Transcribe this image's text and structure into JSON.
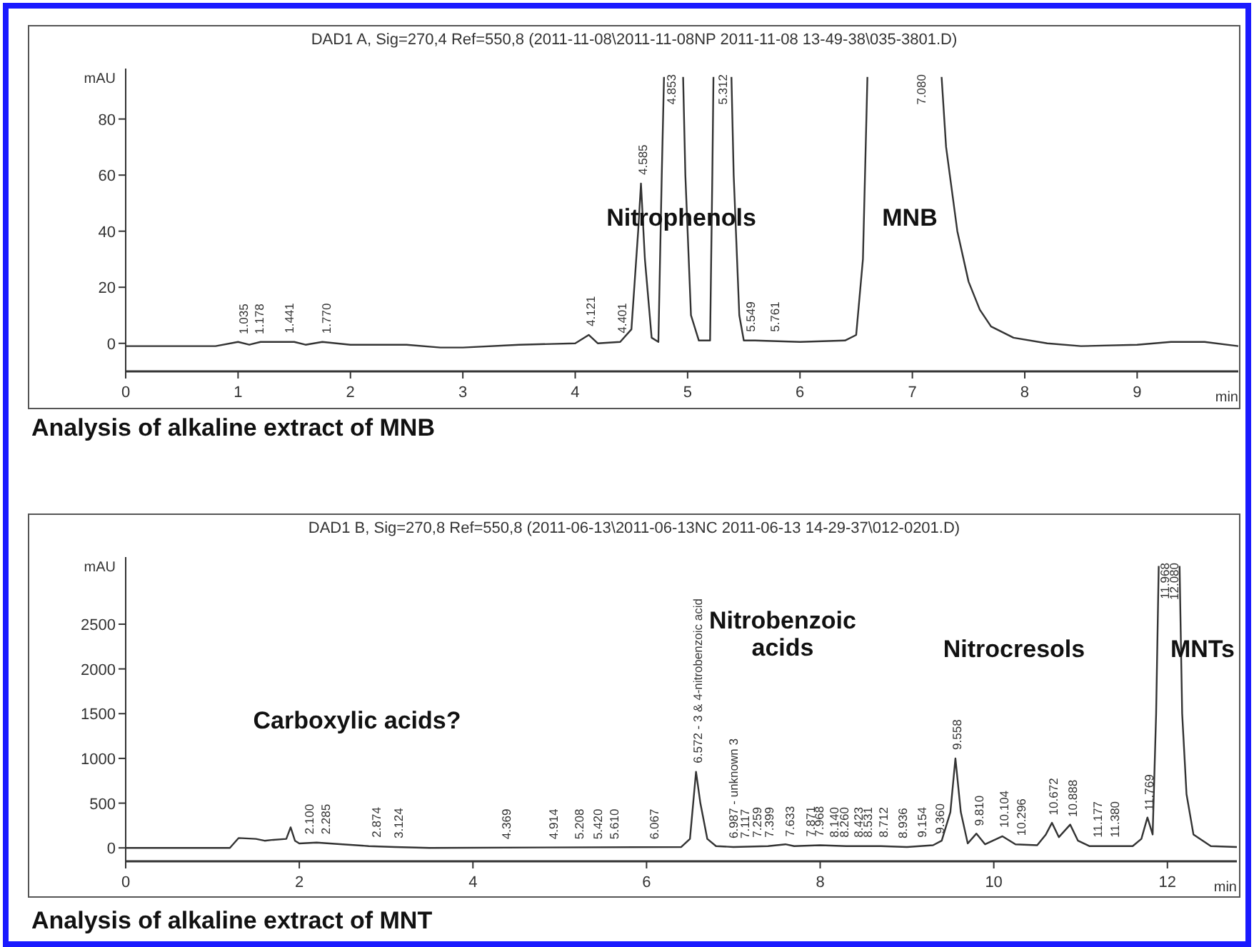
{
  "chart_data": [
    {
      "type": "line",
      "title": "DAD1 A, Sig=270,4 Ref=550,8 (2011-11-08\\2011-11-08NP 2011-11-08 13-49-38\\035-3801.D)",
      "xlabel": "min",
      "ylabel": "mAU",
      "xlim": [
        0,
        9.9
      ],
      "ylim": [
        -10,
        98
      ],
      "xticks": [
        0,
        1,
        2,
        3,
        4,
        5,
        6,
        7,
        8,
        9
      ],
      "yticks": [
        0,
        20,
        40,
        60,
        80
      ],
      "series": [
        {
          "color": "#333333",
          "x": [
            0,
            0.8,
            1.0,
            1.1,
            1.2,
            1.5,
            1.6,
            1.75,
            2.0,
            2.5,
            2.8,
            3.0,
            3.5,
            4.0,
            4.12,
            4.2,
            4.4,
            4.5,
            4.56,
            4.585,
            4.62,
            4.68,
            4.74,
            4.77,
            4.79,
            4.87,
            4.96,
            4.98,
            5.03,
            5.1,
            5.2,
            5.22,
            5.23,
            5.31,
            5.39,
            5.41,
            5.46,
            5.5,
            5.6,
            6.0,
            6.4,
            6.5,
            6.56,
            6.6,
            6.9,
            7.26,
            7.3,
            7.4,
            7.5,
            7.6,
            7.7,
            7.9,
            8.2,
            8.5,
            9.0,
            9.3,
            9.6,
            9.9
          ],
          "values": [
            -1,
            -1,
            0.5,
            -0.5,
            0.5,
            0.5,
            -0.5,
            0.5,
            -0.5,
            -0.5,
            -1.5,
            -1.5,
            -0.5,
            0,
            3,
            0,
            0.5,
            5,
            40,
            57,
            30,
            2,
            0.5,
            60,
            95,
            null,
            95,
            60,
            10,
            1,
            1,
            60,
            95,
            null,
            95,
            60,
            10,
            1,
            1,
            0.5,
            1,
            3,
            30,
            95,
            null,
            95,
            70,
            40,
            22,
            12,
            6,
            2,
            0,
            -1,
            -0.5,
            0.5,
            0.5,
            -1
          ]
        }
      ],
      "annotations": [
        {
          "text": "1.035",
          "x": 1.035,
          "y": 0.2
        },
        {
          "text": "1.178",
          "x": 1.178,
          "y": 0.2
        },
        {
          "text": "1.441",
          "x": 1.441,
          "y": 0.5
        },
        {
          "text": "1.770",
          "x": 1.77,
          "y": 0.4
        },
        {
          "text": "4.121",
          "x": 4.121,
          "y": 3
        },
        {
          "text": "4.401",
          "x": 4.401,
          "y": 0.5
        },
        {
          "text": "4.585",
          "x": 4.585,
          "y": 57
        },
        {
          "text": "4.853",
          "x": 4.853,
          "y": 95
        },
        "5.312",
        {
          "text": "5.549",
          "x": 5.549,
          "y": 1
        },
        {
          "text": "5.761",
          "x": 5.761,
          "y": 1
        },
        "7.080",
        "Nitrophenols",
        "MNB",
        "Analysis of alkaline extract of MNB"
      ]
    },
    {
      "type": "line",
      "title": "DAD1 B, Sig=270,8 Ref=550,8 (2011-06-13\\2011-06-13NC 2011-06-13 14-29-37\\012-0201.D)",
      "xlabel": "min",
      "ylabel": "mAU",
      "xlim": [
        0,
        12.8
      ],
      "ylim": [
        -150,
        3250
      ],
      "xticks": [
        0,
        2,
        4,
        6,
        8,
        10,
        12
      ],
      "yticks": [
        0,
        500,
        1000,
        1500,
        2000,
        2500
      ],
      "series": [
        {
          "color": "#333333",
          "x": [
            0,
            1.2,
            1.3,
            1.5,
            1.6,
            1.7,
            1.85,
            1.9,
            1.95,
            2.0,
            2.2,
            2.5,
            2.8,
            3.1,
            3.5,
            6.4,
            6.5,
            6.57,
            6.62,
            6.7,
            6.8,
            7.0,
            7.4,
            7.6,
            7.7,
            8.0,
            8.3,
            8.7,
            9.0,
            9.3,
            9.4,
            9.5,
            9.558,
            9.62,
            9.7,
            9.8,
            9.9,
            10.1,
            10.25,
            10.5,
            10.6,
            10.67,
            10.75,
            10.88,
            10.97,
            11.1,
            11.6,
            11.7,
            11.77,
            11.83,
            11.87,
            11.9,
            12.02,
            12.14,
            12.17,
            12.22,
            12.3,
            12.5,
            12.8
          ],
          "values": [
            0,
            0,
            110,
            100,
            80,
            90,
            100,
            230,
            80,
            50,
            60,
            40,
            20,
            10,
            0,
            10,
            100,
            850,
            500,
            100,
            20,
            10,
            20,
            40,
            20,
            30,
            20,
            20,
            10,
            30,
            80,
            400,
            1000,
            400,
            50,
            160,
            40,
            130,
            40,
            30,
            150,
            280,
            120,
            260,
            80,
            20,
            20,
            100,
            340,
            150,
            1500,
            3150,
            null,
            3150,
            1500,
            600,
            150,
            20,
            10
          ]
        }
      ],
      "annotations": [
        {
          "text": "2.100",
          "x": 2.1,
          "y": 55
        },
        {
          "text": "2.285",
          "x": 2.285,
          "y": 55
        },
        {
          "text": "2.874",
          "x": 2.874,
          "y": 20
        },
        {
          "text": "3.124",
          "x": 3.124,
          "y": 10
        },
        {
          "text": "4.369",
          "x": 4.369,
          "y": 0
        },
        {
          "text": "4.914",
          "x": 4.914,
          "y": 0
        },
        {
          "text": "5.208",
          "x": 5.208,
          "y": 0
        },
        {
          "text": "5.420",
          "x": 5.42,
          "y": 0
        },
        {
          "text": "5.610",
          "x": 5.61,
          "y": 0
        },
        {
          "text": "6.067",
          "x": 6.067,
          "y": 0
        },
        {
          "text": "6.572 - 3 & 4-nitrobenzoic acid",
          "x": 6.572,
          "y": 850
        },
        {
          "text": "6.987 - unknown 3",
          "x": 6.987,
          "y": 10
        },
        {
          "text": "7.117",
          "x": 7.117,
          "y": 10
        },
        {
          "text": "7.259",
          "x": 7.259,
          "y": 20
        },
        {
          "text": "7.399",
          "x": 7.399,
          "y": 20
        },
        {
          "text": "7.633",
          "x": 7.633,
          "y": 30
        },
        {
          "text": "7.871",
          "x": 7.871,
          "y": 30
        },
        {
          "text": "7.968",
          "x": 7.968,
          "y": 30
        },
        {
          "text": "8.140",
          "x": 8.14,
          "y": 20
        },
        {
          "text": "8.260",
          "x": 8.26,
          "y": 20
        },
        {
          "text": "8.423",
          "x": 8.423,
          "y": 20
        },
        {
          "text": "8.531",
          "x": 8.531,
          "y": 20
        },
        {
          "text": "8.712",
          "x": 8.712,
          "y": 20
        },
        {
          "text": "8.936",
          "x": 8.936,
          "y": 10
        },
        {
          "text": "9.154",
          "x": 9.154,
          "y": 20
        },
        {
          "text": "9.360",
          "x": 9.36,
          "y": 60
        },
        {
          "text": "9.558",
          "x": 9.558,
          "y": 1000
        },
        {
          "text": "9.810",
          "x": 9.81,
          "y": 150
        },
        {
          "text": "10.104",
          "x": 10.104,
          "y": 130
        },
        {
          "text": "10.296",
          "x": 10.296,
          "y": 40
        },
        {
          "text": "10.672",
          "x": 10.672,
          "y": 270
        },
        {
          "text": "10.888",
          "x": 10.888,
          "y": 250
        },
        {
          "text": "11.177",
          "x": 11.177,
          "y": 20
        },
        {
          "text": "11.380",
          "x": 11.38,
          "y": 20
        },
        {
          "text": "11.769",
          "x": 11.769,
          "y": 320
        },
        {
          "text": "11.968",
          "x": 11.968,
          "y": 3150
        },
        {
          "text": "12.080",
          "x": 12.08,
          "y": 3150
        },
        "Carboxylic acids?",
        "Nitrobenzoic\nacids",
        "Nitrocresols",
        "MNTs",
        "Analysis of alkaline extract of MNT"
      ]
    }
  ]
}
